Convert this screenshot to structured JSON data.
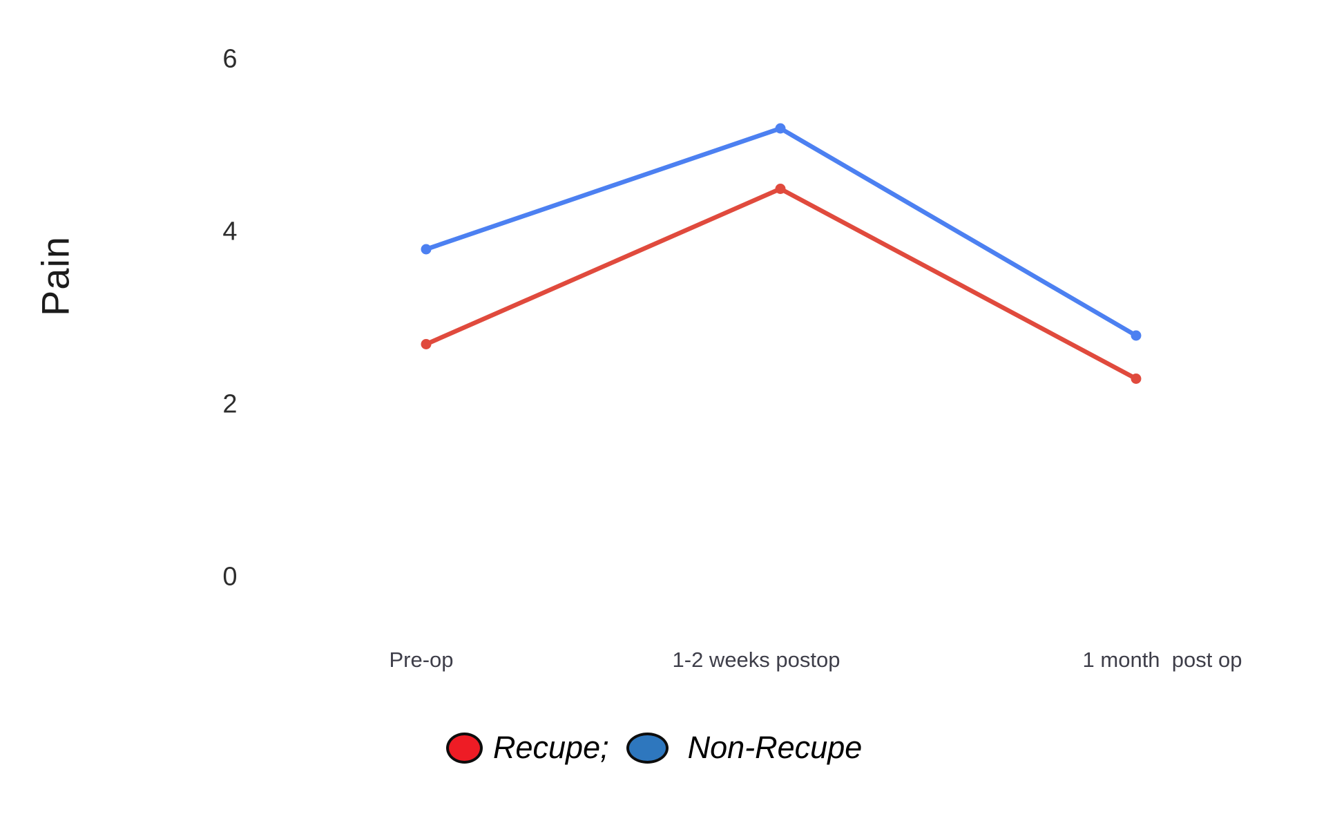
{
  "chart_data": {
    "type": "line",
    "title": "",
    "xlabel": "",
    "ylabel": "Pain",
    "categories": [
      "Pre-op",
      "1-2 weeks postop",
      "1 month  post op"
    ],
    "yticks": [
      6,
      4,
      2,
      0
    ],
    "ylim": [
      0,
      6.7
    ],
    "grid": false,
    "axes_drawn": false,
    "legend_position": "bottom",
    "series": [
      {
        "name": "Recupe",
        "color": "#e04a3d",
        "values": [
          2.7,
          4.5,
          2.3
        ]
      },
      {
        "name": "Non-Recupe",
        "color": "#4c80f1",
        "values": [
          3.8,
          5.2,
          2.8
        ]
      }
    ]
  },
  "legend": {
    "items": [
      {
        "label": "Recupe;",
        "marker_color": "#ee1c25"
      },
      {
        "label": "Non-Recupe",
        "marker_color": "#2e77be"
      }
    ]
  }
}
